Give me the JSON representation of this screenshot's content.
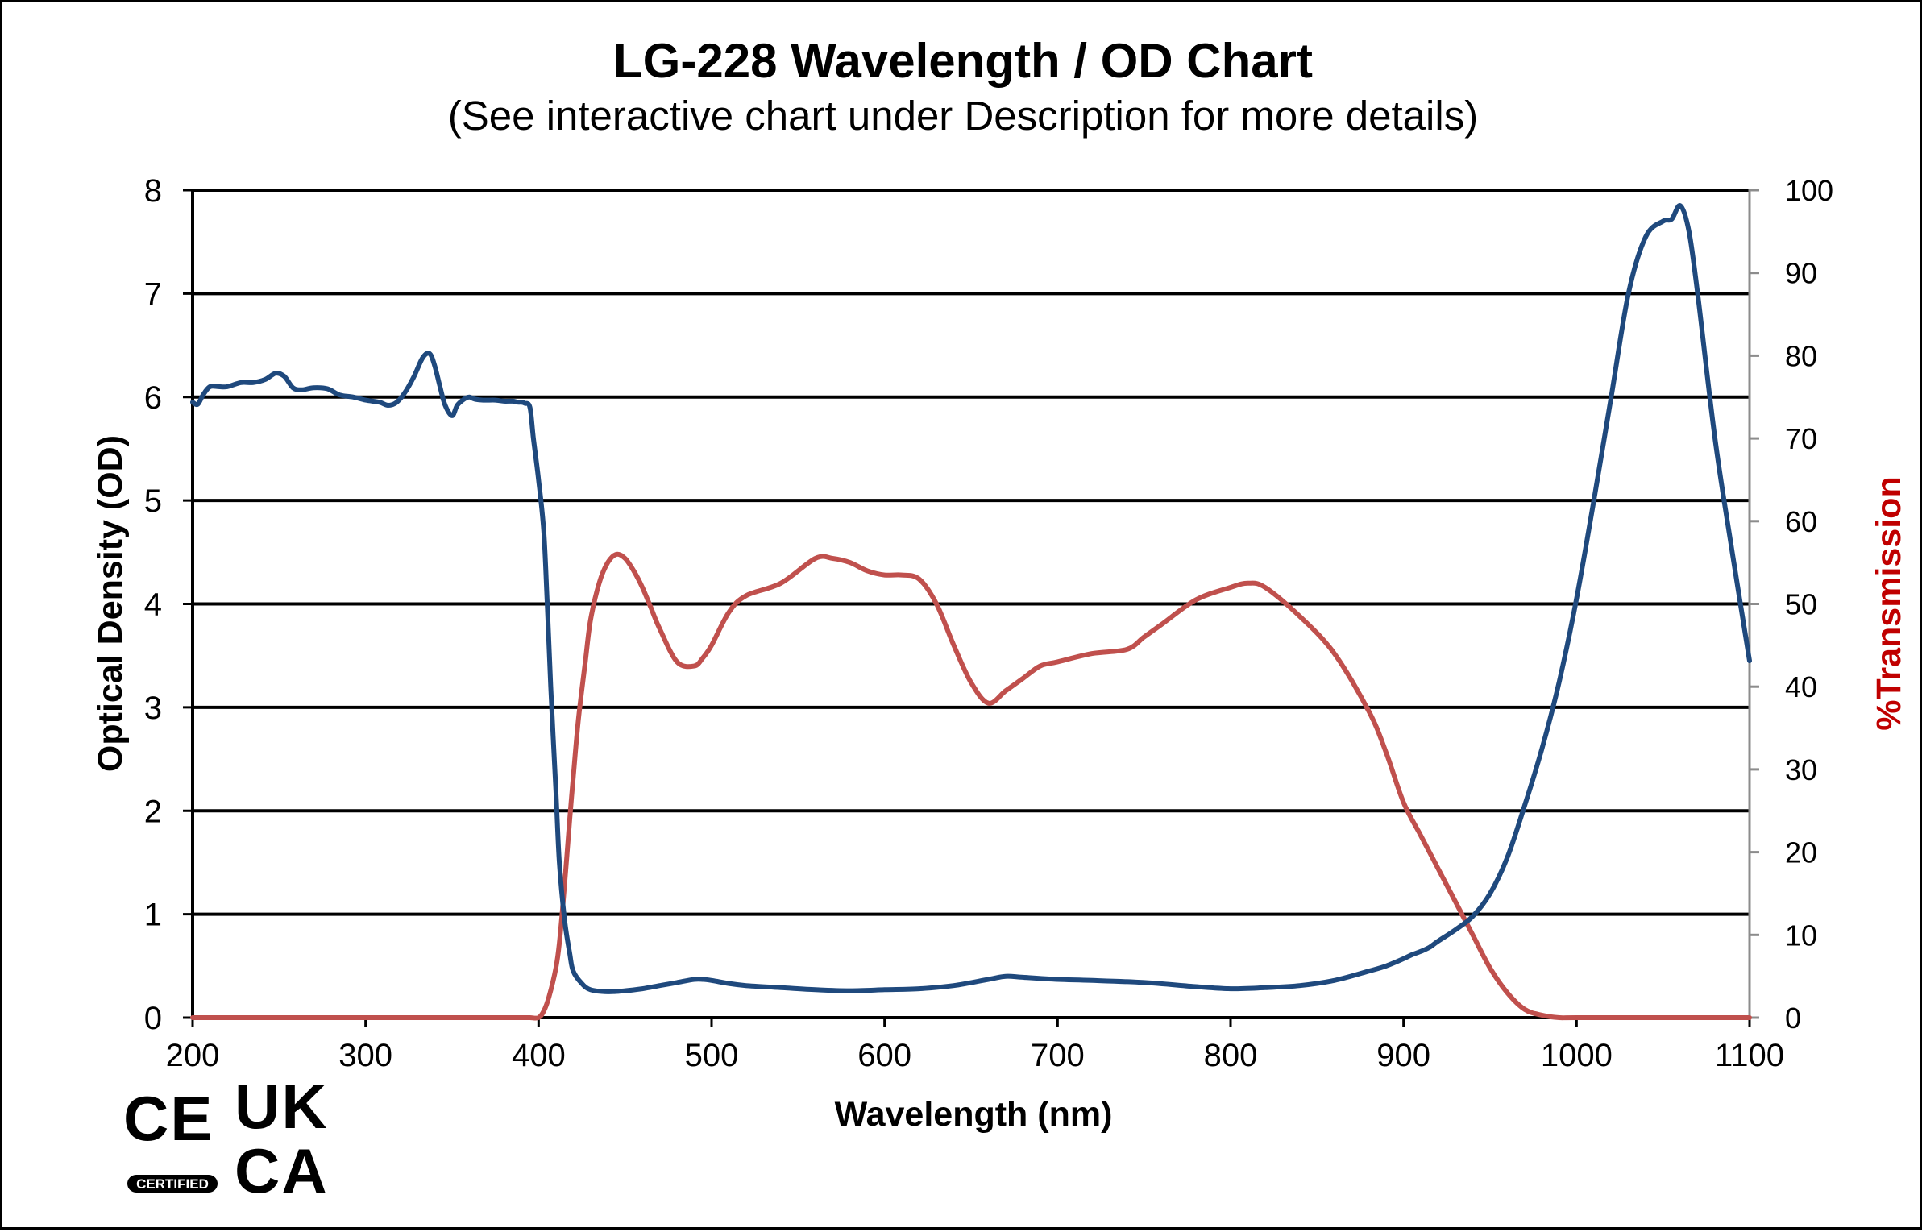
{
  "chart_data": {
    "type": "line",
    "title": "LG-228 Wavelength / OD Chart",
    "subtitle": "(See interactive chart under Description for more details)",
    "xlabel": "Wavelength (nm)",
    "ylabel": "Optical Density (OD)",
    "y2label": "%Transmission",
    "xlim": [
      200,
      1100
    ],
    "ylim": [
      0,
      8
    ],
    "y2lim": [
      0,
      100
    ],
    "xticks": [
      "200",
      "300",
      "400",
      "500",
      "600",
      "700",
      "800",
      "900",
      "1000",
      "1100"
    ],
    "yticks": [
      "0",
      "1",
      "2",
      "3",
      "4",
      "5",
      "6",
      "7",
      "8"
    ],
    "y2ticks": [
      "0",
      "10",
      "20",
      "30",
      "40",
      "50",
      "60",
      "70",
      "80",
      "90",
      "100"
    ],
    "grid": "horizontal",
    "series": [
      {
        "name": "Optical Density",
        "axis": "left",
        "color": "#1f497d",
        "x": [
          200,
          203,
          206,
          210,
          215,
          220,
          228,
          235,
          242,
          248,
          253,
          258,
          263,
          270,
          278,
          285,
          293,
          300,
          308,
          313,
          318,
          323,
          328,
          333,
          337,
          340,
          343,
          346,
          350,
          353,
          357,
          360,
          363,
          368,
          375,
          380,
          385,
          388,
          390,
          392,
          395,
          397,
          400,
          403,
          405,
          407,
          410,
          412,
          415,
          418,
          420,
          425,
          430,
          440,
          450,
          460,
          470,
          480,
          490,
          495,
          500,
          510,
          520,
          540,
          560,
          580,
          600,
          620,
          640,
          660,
          670,
          680,
          700,
          720,
          750,
          780,
          800,
          820,
          840,
          860,
          880,
          890,
          900,
          905,
          910,
          915,
          920,
          930,
          940,
          950,
          960,
          970,
          980,
          990,
          1000,
          1010,
          1020,
          1030,
          1040,
          1050,
          1055,
          1060,
          1065,
          1070,
          1080,
          1090,
          1100
        ],
        "values": [
          5.95,
          5.93,
          6.02,
          6.1,
          6.1,
          6.1,
          6.14,
          6.14,
          6.17,
          6.23,
          6.2,
          6.09,
          6.07,
          6.09,
          6.08,
          6.02,
          6.0,
          5.97,
          5.95,
          5.92,
          5.95,
          6.05,
          6.2,
          6.38,
          6.42,
          6.3,
          6.1,
          5.92,
          5.82,
          5.92,
          5.98,
          6.0,
          5.98,
          5.97,
          5.97,
          5.96,
          5.96,
          5.95,
          5.95,
          5.94,
          5.9,
          5.6,
          5.2,
          4.7,
          4.0,
          3.2,
          2.2,
          1.5,
          0.95,
          0.62,
          0.45,
          0.33,
          0.27,
          0.25,
          0.26,
          0.28,
          0.31,
          0.34,
          0.37,
          0.37,
          0.36,
          0.33,
          0.31,
          0.29,
          0.27,
          0.26,
          0.27,
          0.28,
          0.31,
          0.37,
          0.4,
          0.39,
          0.37,
          0.36,
          0.34,
          0.3,
          0.28,
          0.29,
          0.31,
          0.36,
          0.45,
          0.5,
          0.57,
          0.61,
          0.64,
          0.68,
          0.74,
          0.85,
          0.98,
          1.2,
          1.55,
          2.05,
          2.6,
          3.25,
          4.05,
          5.0,
          6.0,
          7.0,
          7.55,
          7.7,
          7.72,
          7.85,
          7.6,
          7.0,
          5.6,
          4.5,
          3.45
        ]
      },
      {
        "name": "% Transmission",
        "axis": "right",
        "color": "#c0504d",
        "x": [
          200,
          250,
          300,
          350,
          390,
          395,
          400,
          403,
          406,
          410,
          412,
          415,
          418,
          420,
          423,
          427,
          430,
          435,
          440,
          445,
          450,
          455,
          460,
          465,
          470,
          480,
          490,
          495,
          500,
          510,
          520,
          540,
          560,
          570,
          580,
          590,
          600,
          610,
          620,
          630,
          640,
          650,
          660,
          670,
          680,
          690,
          700,
          720,
          740,
          750,
          760,
          780,
          800,
          810,
          820,
          840,
          860,
          880,
          890,
          900,
          910,
          920,
          930,
          940,
          950,
          960,
          970,
          980,
          990,
          1000,
          1050,
          1100
        ],
        "values": [
          0,
          0,
          0,
          0,
          0,
          0,
          0,
          0.8,
          2.5,
          6,
          9,
          16,
          24,
          29,
          36,
          43,
          48,
          52.5,
          55,
          56,
          55.5,
          54,
          52,
          49.5,
          47,
          43,
          42.5,
          43.5,
          45,
          49,
          51,
          52.5,
          55.5,
          55.5,
          55,
          54,
          53.5,
          53.5,
          53,
          50,
          45,
          40.5,
          38,
          39.5,
          41,
          42.5,
          43,
          44,
          44.5,
          46,
          47.5,
          50.5,
          52,
          52.5,
          52,
          48.5,
          44,
          37,
          32,
          26,
          22,
          18,
          14,
          10,
          6,
          3,
          1,
          0.3,
          0,
          0,
          0,
          0
        ]
      }
    ]
  },
  "certification": {
    "ce_mark": "CE",
    "ce_caption": "CERTIFIED",
    "ukca_top": "UK",
    "ukca_bottom": "CA"
  }
}
